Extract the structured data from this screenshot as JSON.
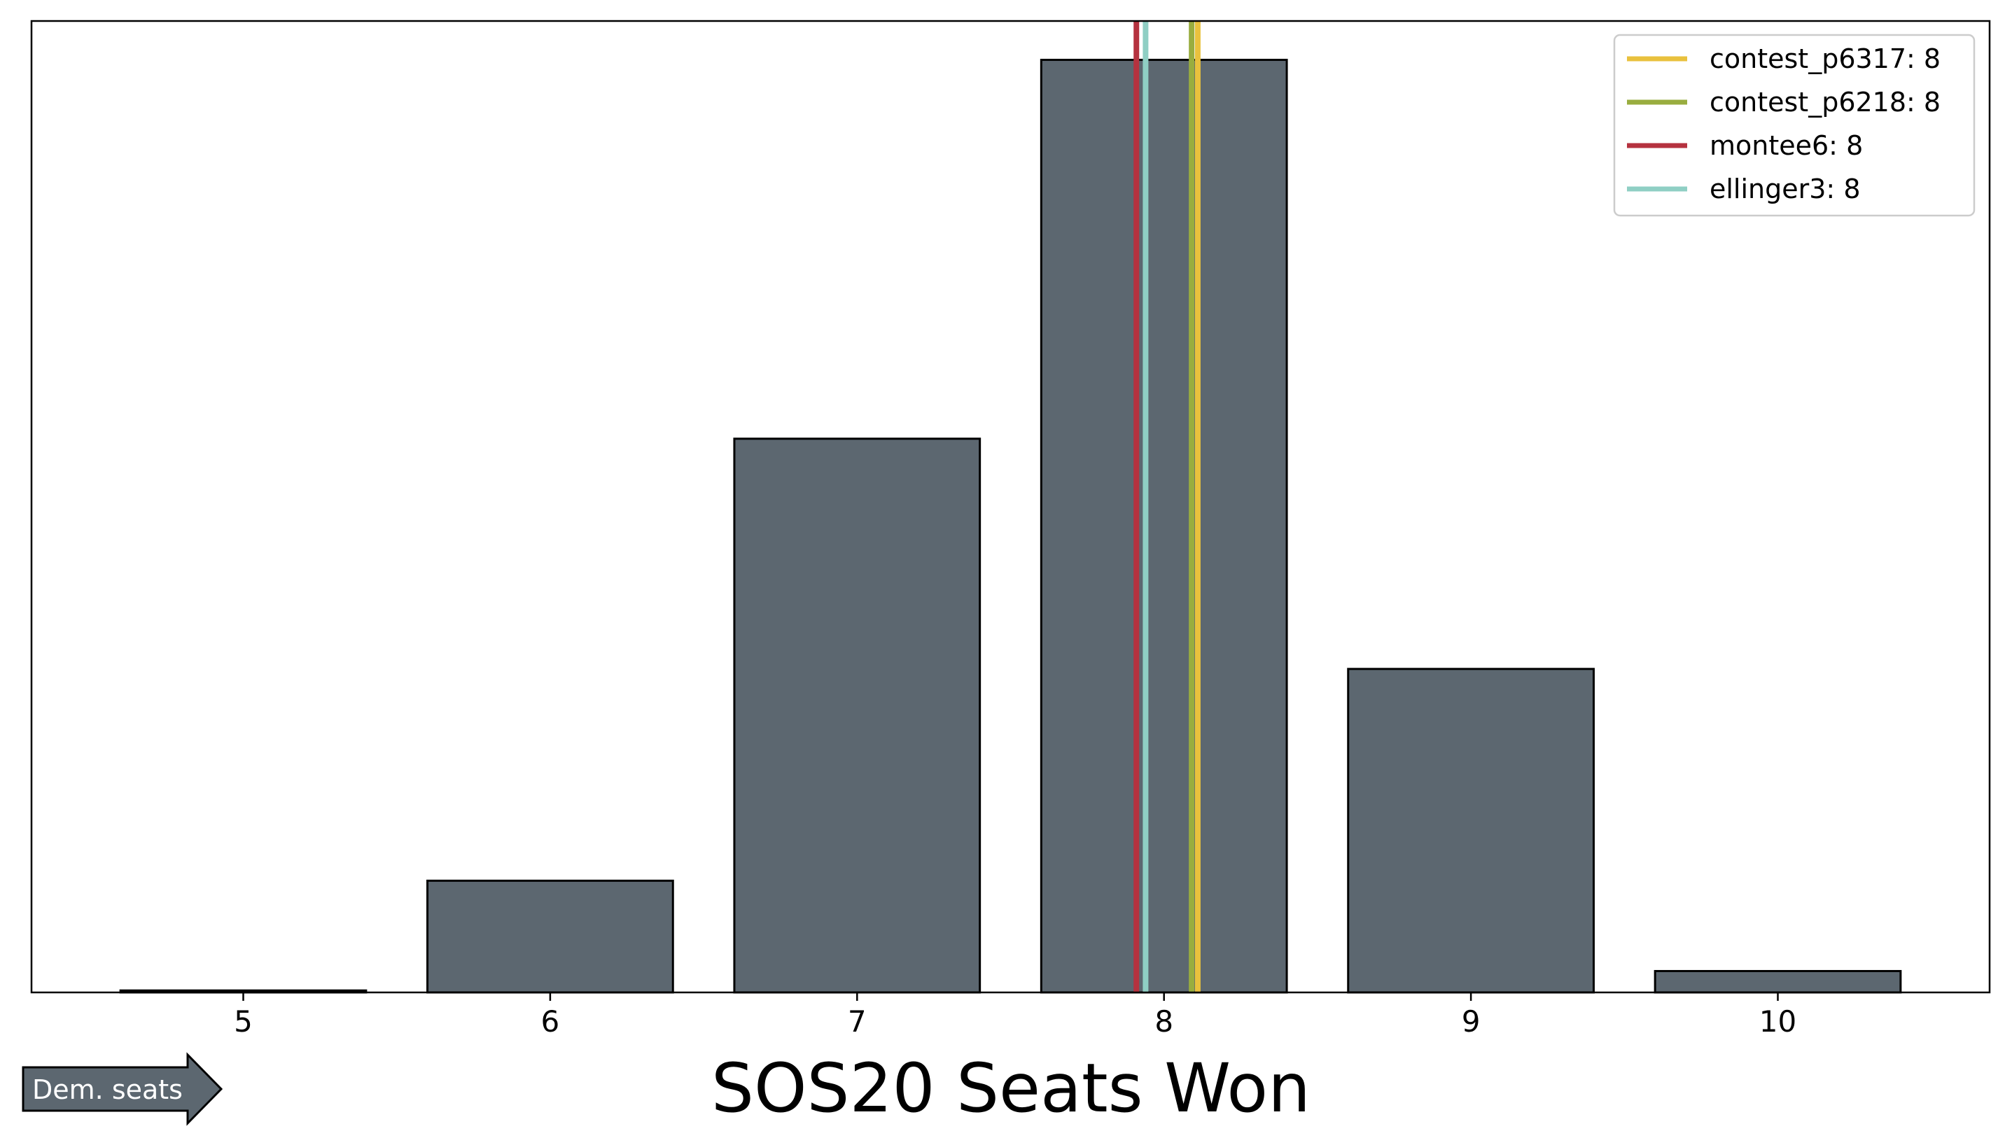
{
  "chart_data": {
    "type": "bar",
    "categories": [
      "5",
      "6",
      "7",
      "8",
      "9",
      "10"
    ],
    "x": [
      5,
      6,
      7,
      8,
      9,
      10
    ],
    "values": [
      0.2,
      11.5,
      57.0,
      96.0,
      33.3,
      2.2
    ],
    "ylim": [
      0,
      100
    ],
    "xlim": [
      4.31,
      10.69
    ],
    "xlabel": "SOS20 Seats Won",
    "bar_color": "#5c6770",
    "bar_edge_color": "#000000",
    "grid": false,
    "legend_position": "top-right",
    "reference_lines": [
      {
        "label": "contest_p6317: 8",
        "x": 8.11,
        "color": "#e9c13d"
      },
      {
        "label": "contest_p6218: 8",
        "x": 8.09,
        "color": "#99ad3f"
      },
      {
        "label": "montee6: 8",
        "x": 7.91,
        "color": "#b5323f"
      },
      {
        "label": "ellinger3: 8",
        "x": 7.94,
        "color": "#8fcfc4"
      }
    ],
    "arrow_label": "Dem. seats"
  }
}
